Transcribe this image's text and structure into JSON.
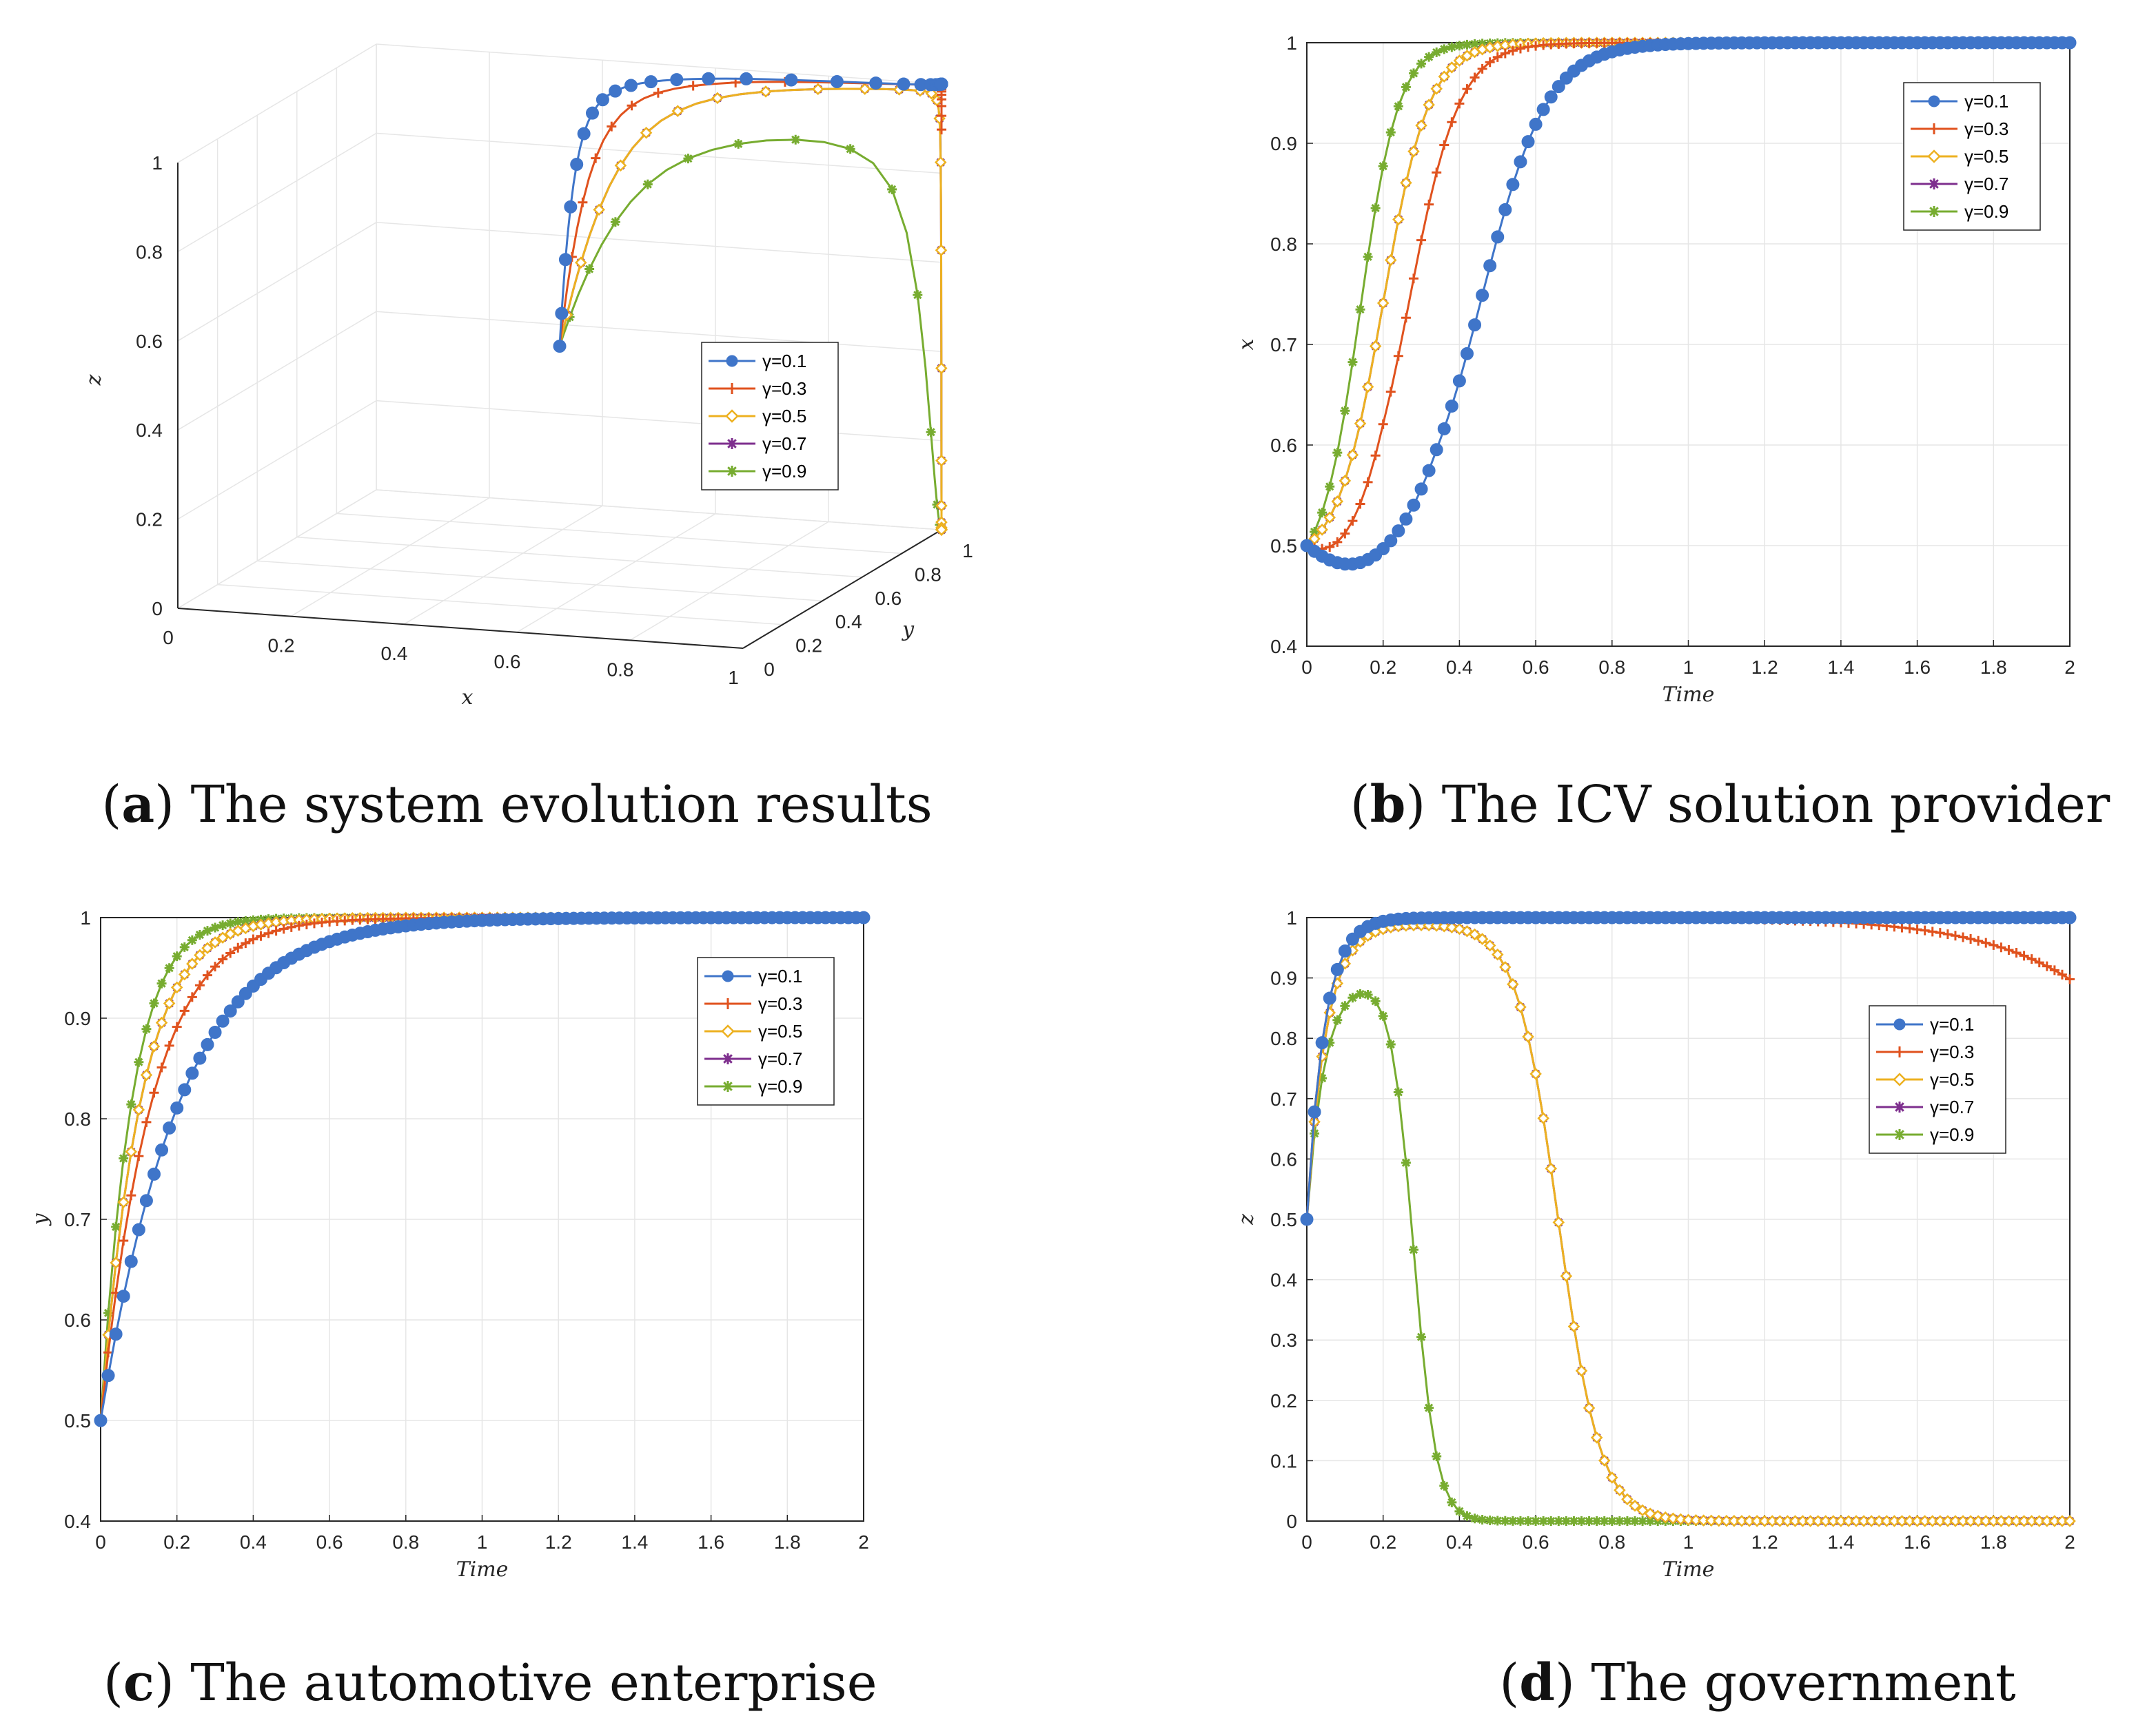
{
  "colors": {
    "g01": "#3f75c9",
    "g03": "#e0521e",
    "g05": "#edb120",
    "g07": "#7e2f8e",
    "g09": "#77ac30"
  },
  "chart_data": [
    {
      "id": "a",
      "type": "line3d",
      "caption_letter": "a",
      "caption_text": "The system evolution results",
      "xlabel": "x",
      "ylabel": "y",
      "zlabel": "z",
      "x_ticks": [
        "0",
        "0.2",
        "0.4",
        "0.6",
        "0.8",
        "1"
      ],
      "y_ticks": [
        "0",
        "0.2",
        "0.4",
        "0.6",
        "0.8",
        "1"
      ],
      "z_ticks": [
        "0",
        "0.2",
        "0.4",
        "0.6",
        "0.8",
        "1"
      ],
      "legend": [
        "γ=0.1",
        "γ=0.3",
        "γ=0.5",
        "γ=0.7",
        "γ=0.9"
      ]
    },
    {
      "id": "b",
      "type": "line",
      "caption_letter": "b",
      "caption_text": "The ICV solution provider",
      "xlabel": "Time",
      "ylabel": "x",
      "xlim": [
        0,
        2
      ],
      "ylim": [
        0.4,
        1
      ],
      "x_ticks": [
        "0",
        "0.2",
        "0.4",
        "0.6",
        "0.8",
        "1",
        "1.2",
        "1.4",
        "1.6",
        "1.8",
        "2"
      ],
      "y_ticks": [
        "0.4",
        "0.5",
        "0.6",
        "0.7",
        "0.8",
        "0.9",
        "1"
      ],
      "legend_position": "top-right",
      "series": [
        {
          "name": "γ=0.1",
          "shape": "logistic",
          "start": 0.5,
          "dip": 0.02,
          "t50": 0.46,
          "w": 0.085,
          "end": 1.0
        },
        {
          "name": "γ=0.3",
          "shape": "logistic",
          "start": 0.5,
          "dip": 0.01,
          "t50": 0.27,
          "w": 0.065,
          "end": 1.0
        },
        {
          "name": "γ=0.5",
          "shape": "logistic",
          "start": 0.5,
          "t50": 0.2,
          "w": 0.06,
          "end": 1.0
        },
        {
          "name": "γ=0.7",
          "shape": "logistic",
          "start": 0.5,
          "t50": 0.2,
          "w": 0.06,
          "end": 1.0
        },
        {
          "name": "γ=0.9",
          "shape": "logistic",
          "start": 0.5,
          "t50": 0.14,
          "w": 0.05,
          "end": 1.0
        }
      ]
    },
    {
      "id": "c",
      "type": "line",
      "caption_letter": "c",
      "caption_text": "The automotive enterprise",
      "xlabel": "Time",
      "ylabel": "y",
      "xlim": [
        0,
        2
      ],
      "ylim": [
        0.4,
        1
      ],
      "x_ticks": [
        "0",
        "0.2",
        "0.4",
        "0.6",
        "0.8",
        "1",
        "1.2",
        "1.4",
        "1.6",
        "1.8",
        "2"
      ],
      "y_ticks": [
        "0.4",
        "0.5",
        "0.6",
        "0.7",
        "0.8",
        "0.9",
        "1"
      ],
      "legend_position": "top-right",
      "series": [
        {
          "name": "γ=0.1",
          "shape": "saturate",
          "start": 0.5,
          "rate": 5.3,
          "end": 1.0
        },
        {
          "name": "γ=0.3",
          "shape": "saturate",
          "start": 0.5,
          "rate": 8.2,
          "end": 1.0
        },
        {
          "name": "γ=0.5",
          "shape": "saturate",
          "start": 0.5,
          "rate": 10.5,
          "end": 1.0
        },
        {
          "name": "γ=0.7",
          "shape": "saturate",
          "start": 0.5,
          "rate": 10.5,
          "end": 1.0
        },
        {
          "name": "γ=0.9",
          "shape": "saturate",
          "start": 0.5,
          "rate": 13.5,
          "end": 1.0
        }
      ]
    },
    {
      "id": "d",
      "type": "line",
      "caption_letter": "d",
      "caption_text": "The government",
      "xlabel": "Time",
      "ylabel": "z",
      "xlim": [
        0,
        2
      ],
      "ylim": [
        0,
        1
      ],
      "x_ticks": [
        "0",
        "0.2",
        "0.4",
        "0.6",
        "0.8",
        "1",
        "1.2",
        "1.4",
        "1.6",
        "1.8",
        "2"
      ],
      "y_ticks": [
        "0",
        "0.1",
        "0.2",
        "0.3",
        "0.4",
        "0.5",
        "0.6",
        "0.7",
        "0.8",
        "0.9",
        "1"
      ],
      "legend_position": "top-right",
      "series": [
        {
          "name": "γ=0.1",
          "shape": "risefall",
          "start": 0.5,
          "peak": 1.0,
          "rise": 22,
          "fall_t": 99,
          "fall_w": 0.1
        },
        {
          "name": "γ=0.3",
          "shape": "risefall",
          "start": 0.5,
          "peak": 1.0,
          "rise": 22,
          "fall_t": 2.5,
          "fall_w": 0.23
        },
        {
          "name": "γ=0.5",
          "shape": "risefall",
          "start": 0.5,
          "peak": 0.99,
          "rise": 20,
          "fall_t": 0.66,
          "fall_w": 0.055
        },
        {
          "name": "γ=0.7",
          "shape": "risefall",
          "start": 0.5,
          "peak": 0.99,
          "rise": 20,
          "fall_t": 0.66,
          "fall_w": 0.055
        },
        {
          "name": "γ=0.9",
          "shape": "risefall",
          "start": 0.5,
          "peak": 0.9,
          "rise": 22,
          "fall_t": 0.28,
          "fall_w": 0.03
        }
      ]
    }
  ]
}
